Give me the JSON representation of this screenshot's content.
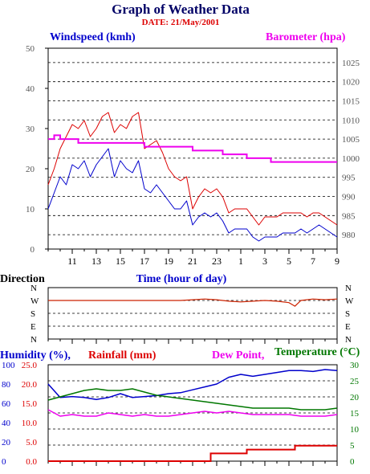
{
  "title": "Graph of Weather Data",
  "date_label": "DATE: 21/May/2001",
  "colors": {
    "wind": "#0000cc",
    "gust": "#dd0000",
    "baro": "#ee00ee",
    "grid": "#000000",
    "humid": "#0000cc",
    "rain": "#dd0000",
    "dew": "#ee00ee",
    "temp": "#007700",
    "direction": "#cc2200",
    "dim_text": "#555555",
    "title": "#000066"
  },
  "chart_data": [
    {
      "id": "wind_baro",
      "type": "line",
      "left_axis_label": "Windspeed (kmh)",
      "right_axis_label": "Barometer (hpa)",
      "xlabel": "Time (hour of day)",
      "x_range": [
        9.0,
        33.0
      ],
      "x_tick_labels": [
        "11",
        "13",
        "15",
        "17",
        "19",
        "21",
        "23",
        "1",
        "3",
        "5",
        "7",
        "9"
      ],
      "left_ylim": [
        0,
        50
      ],
      "left_ticks": [
        "0",
        "10",
        "20",
        "30",
        "40",
        "50"
      ],
      "right_ylim": [
        976.25,
        1028.75
      ],
      "right_ticks": [
        "980",
        "985",
        "990",
        "995",
        "1000",
        "1005",
        "1010",
        "1015",
        "1020",
        "1025"
      ],
      "series": [
        {
          "kind": "windspeed",
          "x": [
            9.0,
            9.5,
            10.0,
            10.5,
            11.0,
            11.5,
            12.0,
            12.5,
            13.0,
            13.5,
            14.0,
            14.5,
            15.0,
            15.5,
            16.0,
            16.5,
            17.0,
            17.5,
            18.0,
            18.5,
            19.0,
            19.5,
            20.0,
            20.5,
            21.0,
            21.5,
            22.0,
            22.5,
            23.0,
            23.5,
            24.0,
            24.5,
            25.0,
            25.5,
            26.0,
            26.5,
            27.0,
            27.5,
            28.0,
            28.5,
            29.0,
            29.5,
            30.0,
            30.5,
            31.0,
            31.5,
            32.0,
            32.5,
            33.0
          ],
          "values": [
            10,
            14,
            18,
            16,
            21,
            20,
            22,
            18,
            21,
            23,
            25,
            18,
            22,
            20,
            19,
            22,
            15,
            14,
            16,
            14,
            12,
            10,
            10,
            12,
            6,
            8,
            9,
            8,
            9,
            7,
            4,
            5,
            5,
            5,
            3,
            2,
            3,
            3,
            3,
            4,
            4,
            4,
            5,
            4,
            5,
            6,
            5,
            4,
            3
          ]
        },
        {
          "kind": "gust",
          "x": [
            9.0,
            9.5,
            10.0,
            10.5,
            11.0,
            11.5,
            12.0,
            12.5,
            13.0,
            13.5,
            14.0,
            14.5,
            15.0,
            15.5,
            16.0,
            16.5,
            17.0,
            17.5,
            18.0,
            18.5,
            19.0,
            19.5,
            20.0,
            20.5,
            21.0,
            21.5,
            22.0,
            22.5,
            23.0,
            23.5,
            24.0,
            24.5,
            25.0,
            25.5,
            26.0,
            26.5,
            27.0,
            27.5,
            28.0,
            28.5,
            29.0,
            29.5,
            30.0,
            30.5,
            31.0,
            31.5,
            32.0,
            32.5,
            33.0
          ],
          "values": [
            16,
            20,
            25,
            28,
            31,
            30,
            32,
            28,
            30,
            33,
            34,
            29,
            31,
            30,
            33,
            34,
            25,
            26,
            27,
            24,
            20,
            18,
            17,
            18,
            10,
            13,
            15,
            14,
            15,
            13,
            9,
            10,
            10,
            10,
            8,
            6,
            8,
            8,
            8,
            9,
            9,
            9,
            9,
            8,
            9,
            9,
            8,
            7,
            6
          ]
        },
        {
          "kind": "barometer",
          "x": [
            9.0,
            9.5,
            10.0,
            10.5,
            11.0,
            11.5,
            12.0,
            12.5,
            13.0,
            13.5,
            14.0,
            14.5,
            15.0,
            15.5,
            16.0,
            16.5,
            17.0,
            17.5,
            18.0,
            18.5,
            19.0,
            19.5,
            20.0,
            20.5,
            21.0,
            21.5,
            22.0,
            22.5,
            23.0,
            23.5,
            24.0,
            24.5,
            25.0,
            25.5,
            26.0,
            26.5,
            27.0,
            27.5,
            28.0,
            28.5,
            29.0,
            29.5,
            30.0,
            30.5,
            31.0,
            31.5,
            32.0,
            32.5,
            33.0
          ],
          "values": [
            1005,
            1006,
            1005,
            1005,
            1005,
            1004,
            1004,
            1004,
            1004,
            1004,
            1004,
            1004,
            1004,
            1004,
            1004,
            1004,
            1003,
            1003,
            1003,
            1003,
            1003,
            1003,
            1003,
            1003,
            1002,
            1002,
            1002,
            1002,
            1002,
            1001,
            1001,
            1001,
            1001,
            1000,
            1000,
            1000,
            1000,
            999,
            999,
            999,
            999,
            999,
            999,
            999,
            999,
            999,
            999,
            999,
            999
          ]
        }
      ]
    },
    {
      "id": "direction",
      "type": "line",
      "axis_label": "Direction",
      "x_range": [
        9.0,
        33.0
      ],
      "categories": [
        "N",
        "W",
        "S",
        "E",
        "N"
      ],
      "series": [
        {
          "kind": "direction",
          "x": [
            9.0,
            10.0,
            11.0,
            12.0,
            13.0,
            14.0,
            15.0,
            16.0,
            17.0,
            18.0,
            19.0,
            20.0,
            21.0,
            22.0,
            23.0,
            24.0,
            25.0,
            26.0,
            27.0,
            28.0,
            29.0,
            29.5,
            30.0,
            31.0,
            32.0,
            33.0
          ],
          "values": [
            270,
            270,
            270,
            270,
            270,
            270,
            270,
            270,
            270,
            270,
            270,
            270,
            275,
            280,
            275,
            265,
            260,
            265,
            270,
            265,
            255,
            230,
            270,
            280,
            275,
            280
          ]
        }
      ]
    },
    {
      "id": "climate",
      "type": "line",
      "humidity_label": "Humidity (%),",
      "rainfall_label": "Rainfall (mm)",
      "dewpoint_label": "Dew Point,",
      "temperature_label": "Temperature (°C)",
      "x_range": [
        9.0,
        33.0
      ],
      "humidity_ylim": [
        0,
        100
      ],
      "humidity_ticks": [
        "0",
        "20",
        "40",
        "60",
        "80",
        "100"
      ],
      "rain_ylim": [
        0,
        25
      ],
      "rain_ticks": [
        "0.0",
        "5.0",
        "10.0",
        "15.0",
        "20.0",
        "25.0"
      ],
      "temp_ylim": [
        0,
        30
      ],
      "temp_ticks": [
        "0",
        "5",
        "10",
        "15",
        "20",
        "25",
        "30"
      ],
      "series": [
        {
          "kind": "humidity",
          "x": [
            9.0,
            10.0,
            11.0,
            12.0,
            13.0,
            14.0,
            15.0,
            16.0,
            17.0,
            18.0,
            19.0,
            20.0,
            21.0,
            22.0,
            23.0,
            24.0,
            25.0,
            26.0,
            27.0,
            28.0,
            29.0,
            30.0,
            31.0,
            32.0,
            33.0
          ],
          "values": [
            80,
            66,
            67,
            66,
            64,
            66,
            70,
            66,
            67,
            68,
            70,
            71,
            74,
            77,
            80,
            87,
            90,
            88,
            90,
            92,
            94,
            94,
            93,
            95,
            94
          ]
        },
        {
          "kind": "rainfall",
          "x": [
            9.0,
            10.0,
            12.0,
            14.0,
            16.0,
            18.0,
            20.0,
            22.0,
            22.5,
            23.5,
            25.0,
            25.5,
            27.0,
            28.0,
            29.0,
            29.5,
            31.0,
            33.0
          ],
          "values": [
            0.0,
            0.0,
            0.0,
            0.0,
            0.0,
            0.0,
            0.0,
            0.0,
            2.0,
            2.0,
            2.0,
            3.0,
            3.0,
            3.0,
            3.0,
            4.0,
            4.0,
            4.0
          ]
        },
        {
          "kind": "dewpoint",
          "x": [
            9.0,
            10.0,
            11.0,
            12.0,
            13.0,
            14.0,
            15.0,
            16.0,
            17.0,
            18.0,
            19.0,
            20.0,
            21.0,
            22.0,
            23.0,
            24.0,
            25.0,
            26.0,
            27.0,
            28.0,
            29.0,
            30.0,
            31.0,
            32.0,
            33.0
          ],
          "values": [
            16,
            14,
            14.5,
            14,
            14,
            15,
            14.5,
            14,
            14.5,
            14,
            14,
            14.5,
            15,
            15.5,
            15,
            15.5,
            15,
            14.5,
            14.5,
            14.5,
            14.5,
            14,
            14,
            14,
            14.5
          ]
        },
        {
          "kind": "temperature",
          "x": [
            9.0,
            10.0,
            11.0,
            12.0,
            13.0,
            14.0,
            15.0,
            16.0,
            17.0,
            18.0,
            19.0,
            20.0,
            21.0,
            22.0,
            23.0,
            24.0,
            25.0,
            26.0,
            27.0,
            28.0,
            29.0,
            30.0,
            31.0,
            32.0,
            33.0
          ],
          "values": [
            19,
            20,
            21,
            22,
            22.5,
            22,
            22,
            22.5,
            21.5,
            20.5,
            20,
            19.5,
            19,
            18.5,
            18,
            17.5,
            17,
            16.5,
            16.5,
            16.5,
            16.5,
            16,
            16,
            16,
            16.5
          ]
        }
      ]
    }
  ]
}
